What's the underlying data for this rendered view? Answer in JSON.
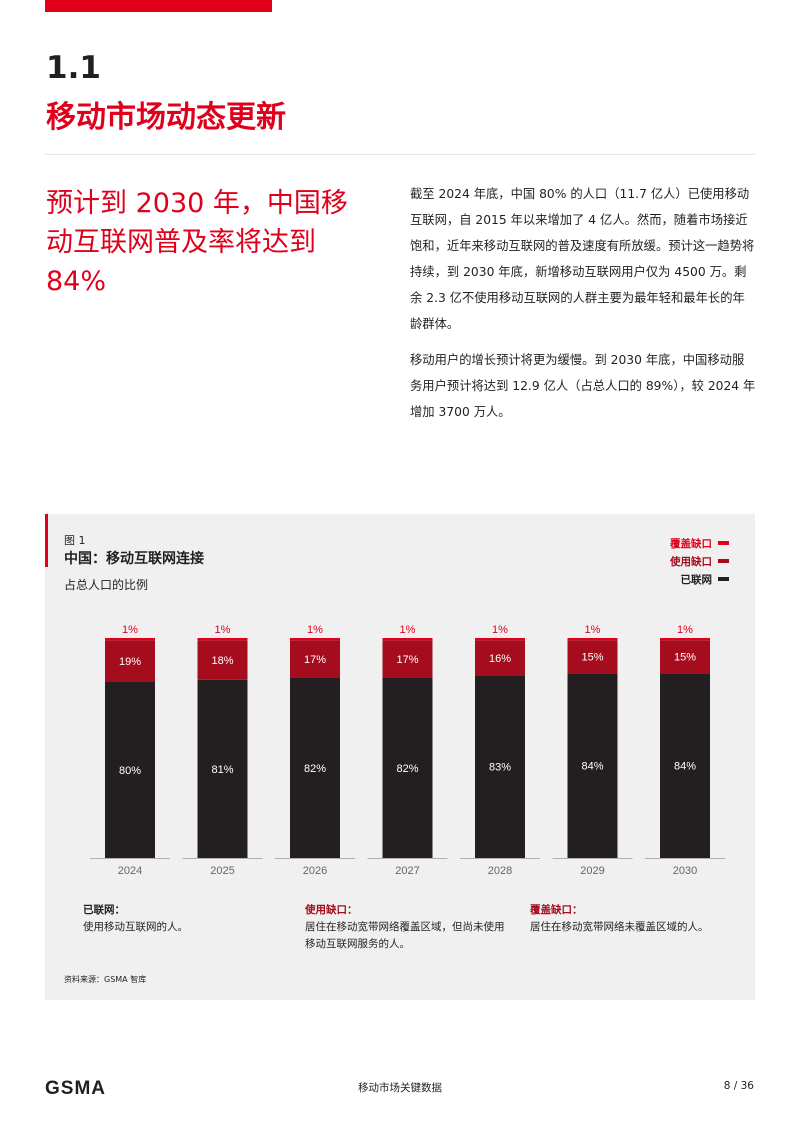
{
  "section": {
    "number": "1.1",
    "title": "移动市场动态更新"
  },
  "headline": "预计到 2030 年，中国移动互联网普及率将达到 84%",
  "body": {
    "p1": "截至 2024 年底，中国 80% 的人口（11.7 亿人）已使用移动互联网，自 2015 年以来增加了 4 亿人。然而，随着市场接近饱和，近年来移动互联网的普及速度有所放缓。预计这一趋势将持续，到 2030 年底，新增移动互联网用户仅为 4500 万。剩余 2.3 亿不使用移动互联网的人群主要为最年轻和最年长的年龄群体。",
    "p2": "移动用户的增长预计将更为缓慢。到 2030 年底，中国移动服务用户预计将达到 12.9 亿人（占总人口的 89%），较 2024 年增加 3700 万人。"
  },
  "figure": {
    "label": "图 1",
    "title": "中国：移动互联网连接",
    "subtitle": "占总人口的比例",
    "legend": [
      {
        "label": "覆盖缺口",
        "color": "#e0001b"
      },
      {
        "label": "使用缺口",
        "color": "#a50d1e"
      },
      {
        "label": "已联网",
        "color": "#231f20"
      }
    ],
    "definitions": [
      {
        "head": "已联网：",
        "text": "使用移动互联网的人。",
        "color": "#231f20"
      },
      {
        "head": "使用缺口：",
        "text": "居住在移动宽带网络覆盖区域，但尚未使用移动互联网服务的人。",
        "color": "#a50d1e"
      },
      {
        "head": "覆盖缺口：",
        "text": "居住在移动宽带网络未覆盖区域的人。",
        "color": "#a50d1e"
      }
    ],
    "source": "资料来源：GSMA 智库"
  },
  "chart_data": {
    "type": "bar",
    "stacked": true,
    "categories": [
      "2024",
      "2025",
      "2026",
      "2027",
      "2028",
      "2029",
      "2030"
    ],
    "series": [
      {
        "name": "已联网",
        "color": "#231f20",
        "values": [
          80,
          81,
          82,
          82,
          83,
          84,
          84
        ]
      },
      {
        "name": "使用缺口",
        "color": "#a50d1e",
        "values": [
          19,
          18,
          17,
          17,
          16,
          15,
          15
        ]
      },
      {
        "name": "覆盖缺口",
        "color": "#e0001b",
        "values": [
          1,
          1,
          1,
          1,
          1,
          1,
          1
        ]
      }
    ],
    "ylim": [
      0,
      100
    ],
    "value_suffix": "%"
  },
  "footer": {
    "logo": "GSMA",
    "title": "移动市场关键数据",
    "page": "8 / 36"
  }
}
